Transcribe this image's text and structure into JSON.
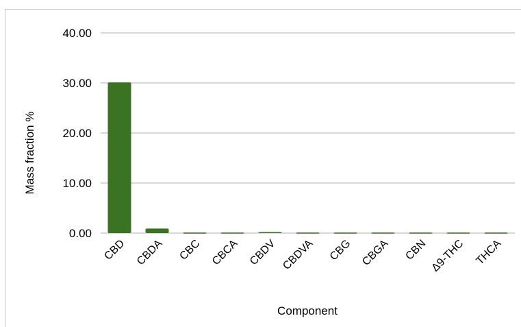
{
  "chart_data": {
    "type": "bar",
    "title": "",
    "xlabel": "Component",
    "ylabel": "Mass fraction %",
    "ylim": [
      0,
      40
    ],
    "yticks": [
      0,
      10,
      20,
      30,
      40
    ],
    "ytick_labels": [
      "0.00",
      "10.00",
      "20.00",
      "30.00",
      "40.00"
    ],
    "categories": [
      "CBD",
      "CBDA",
      "CBC",
      "CBCA",
      "CBDV",
      "CBDVA",
      "CBG",
      "CBGA",
      "CBN",
      "Δ9-THC",
      "THCA"
    ],
    "values": [
      30.1,
      0.9,
      0.1,
      0.1,
      0.2,
      0.1,
      0.1,
      0.1,
      0.1,
      0.1,
      0.1
    ],
    "grid": true,
    "legend": "none",
    "bar_color": "#3a7322",
    "grid_color": "#cccccc"
  }
}
